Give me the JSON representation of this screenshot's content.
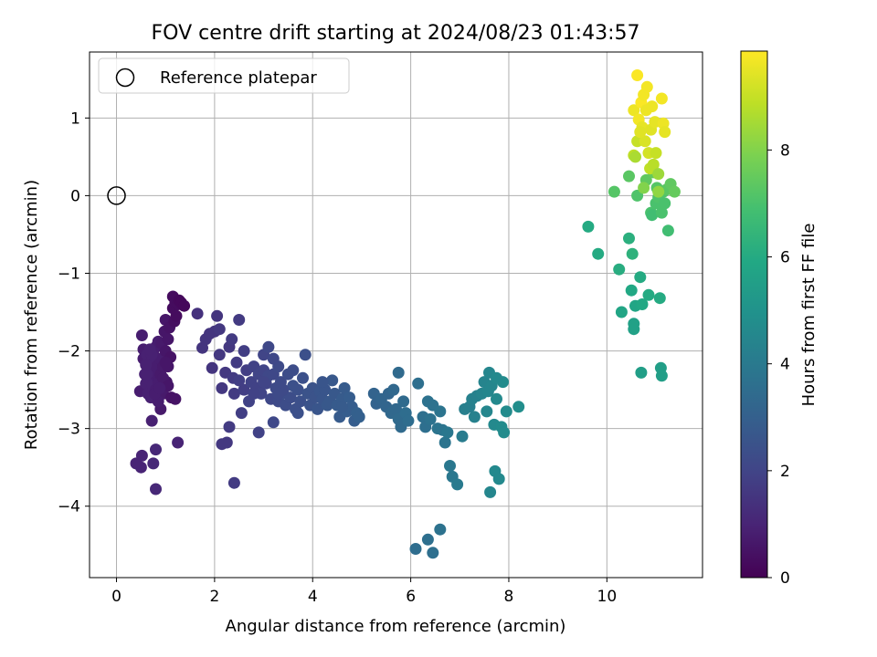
{
  "chart_data": {
    "type": "scatter",
    "title": "FOV centre drift starting at 2024/08/23 01:43:57",
    "xlabel": "Angular distance from reference (arcmin)",
    "ylabel": "Rotation from reference (arcmin)",
    "xlim": [
      -0.55,
      11.95
    ],
    "ylim": [
      -4.92,
      1.85
    ],
    "xticks": [
      0,
      2,
      4,
      6,
      8,
      10
    ],
    "yticks": [
      -4,
      -3,
      -2,
      -1,
      0,
      1
    ],
    "grid": true,
    "legend": {
      "position": "top-left",
      "entries": [
        "Reference platepar"
      ]
    },
    "reference_point": {
      "x": 0,
      "y": 0
    },
    "colorbar": {
      "label": "Hours from first FF file",
      "range": [
        0,
        9.85
      ],
      "ticks": [
        0,
        2,
        4,
        6,
        8
      ],
      "colormap": "viridis"
    },
    "points": [
      [
        0.4,
        -3.45,
        1.0
      ],
      [
        0.5,
        -3.5,
        1.0
      ],
      [
        0.52,
        -3.35,
        1.0
      ],
      [
        0.75,
        -3.45,
        1.1
      ],
      [
        0.8,
        -3.78,
        1.1
      ],
      [
        0.8,
        -3.27,
        1.1
      ],
      [
        0.48,
        -2.52,
        0.8
      ],
      [
        0.52,
        -1.8,
        0.8
      ],
      [
        0.55,
        -1.98,
        0.8
      ],
      [
        0.55,
        -2.1,
        0.8
      ],
      [
        0.58,
        -2.3,
        0.9
      ],
      [
        0.6,
        -2.42,
        0.9
      ],
      [
        0.62,
        -2.05,
        0.9
      ],
      [
        0.64,
        -2.55,
        0.9
      ],
      [
        0.65,
        -2.25,
        0.9
      ],
      [
        0.68,
        -2.38,
        0.9
      ],
      [
        0.7,
        -2.15,
        0.9
      ],
      [
        0.7,
        -2.6,
        0.9
      ],
      [
        0.72,
        -2.9,
        0.9
      ],
      [
        0.74,
        -2.45,
        0.9
      ],
      [
        0.75,
        -2.0,
        0.8
      ],
      [
        0.78,
        -2.3,
        0.8
      ],
      [
        0.8,
        -1.95,
        0.8
      ],
      [
        0.8,
        -2.5,
        0.8
      ],
      [
        0.82,
        -2.2,
        0.8
      ],
      [
        0.85,
        -2.4,
        0.8
      ],
      [
        0.85,
        -1.88,
        0.8
      ],
      [
        0.88,
        -2.1,
        0.8
      ],
      [
        0.9,
        -2.75,
        0.7
      ],
      [
        0.9,
        -2.3,
        0.7
      ],
      [
        0.92,
        -1.9,
        0.7
      ],
      [
        0.95,
        -2.55,
        0.7
      ],
      [
        0.95,
        -2.2,
        0.7
      ],
      [
        0.98,
        -1.75,
        0.6
      ],
      [
        1.0,
        -1.6,
        0.6
      ],
      [
        1.0,
        -2.0,
        0.6
      ],
      [
        1.02,
        -2.4,
        0.6
      ],
      [
        1.05,
        -1.85,
        0.6
      ],
      [
        1.05,
        -2.2,
        0.6
      ],
      [
        1.08,
        -1.7,
        0.5
      ],
      [
        1.1,
        -2.08,
        0.5
      ],
      [
        1.12,
        -2.6,
        0.5
      ],
      [
        1.15,
        -1.3,
        0.3
      ],
      [
        1.15,
        -1.45,
        0.3
      ],
      [
        1.18,
        -1.62,
        0.4
      ],
      [
        1.2,
        -2.62,
        0.5
      ],
      [
        1.2,
        -1.38,
        0.3
      ],
      [
        1.22,
        -1.55,
        0.3
      ],
      [
        1.25,
        -1.4,
        0.3
      ],
      [
        1.28,
        -1.35,
        0.2
      ],
      [
        1.32,
        -1.38,
        0.2
      ],
      [
        1.38,
        -1.42,
        0.2
      ],
      [
        1.25,
        -3.18,
        1.0
      ],
      [
        0.62,
        -2.3,
        0.9
      ],
      [
        0.72,
        -2.05,
        0.9
      ],
      [
        0.85,
        -2.65,
        0.8
      ],
      [
        0.95,
        -2.35,
        0.7
      ],
      [
        1.05,
        -2.45,
        0.6
      ],
      [
        0.78,
        -2.55,
        0.8
      ],
      [
        0.68,
        -1.98,
        0.9
      ],
      [
        0.88,
        -2.48,
        0.8
      ],
      [
        1.0,
        -2.15,
        0.6
      ],
      [
        0.6,
        -2.18,
        0.9
      ],
      [
        1.65,
        -1.52,
        1.4
      ],
      [
        1.75,
        -1.96,
        1.5
      ],
      [
        1.82,
        -1.85,
        1.5
      ],
      [
        1.9,
        -1.78,
        1.5
      ],
      [
        1.95,
        -2.22,
        1.5
      ],
      [
        2.0,
        -1.75,
        1.5
      ],
      [
        2.05,
        -1.55,
        1.5
      ],
      [
        2.1,
        -1.72,
        1.6
      ],
      [
        2.1,
        -2.05,
        1.6
      ],
      [
        2.15,
        -2.48,
        1.6
      ],
      [
        2.15,
        -3.2,
        1.6
      ],
      [
        2.22,
        -2.28,
        1.6
      ],
      [
        2.25,
        -3.18,
        1.6
      ],
      [
        2.3,
        -1.95,
        1.6
      ],
      [
        2.3,
        -2.98,
        1.7
      ],
      [
        2.35,
        -1.85,
        1.7
      ],
      [
        2.38,
        -2.35,
        1.7
      ],
      [
        2.4,
        -3.7,
        1.7
      ],
      [
        2.4,
        -2.55,
        1.7
      ],
      [
        2.45,
        -2.15,
        1.7
      ],
      [
        2.5,
        -1.6,
        1.7
      ],
      [
        2.5,
        -2.38,
        1.8
      ],
      [
        2.55,
        -2.8,
        1.8
      ],
      [
        2.6,
        -2.5,
        1.8
      ],
      [
        2.65,
        -2.25,
        1.8
      ],
      [
        2.7,
        -2.65,
        1.9
      ],
      [
        2.75,
        -2.4,
        1.9
      ],
      [
        2.8,
        -2.2,
        1.9
      ],
      [
        2.85,
        -2.48,
        1.9
      ],
      [
        2.9,
        -3.05,
        1.9
      ],
      [
        2.9,
        -2.3,
        2.0
      ],
      [
        2.95,
        -2.55,
        2.0
      ],
      [
        3.0,
        -2.25,
        2.0
      ],
      [
        3.0,
        -2.05,
        2.0
      ],
      [
        3.05,
        -2.42,
        2.0
      ],
      [
        3.1,
        -2.32,
        2.1
      ],
      [
        3.1,
        -1.95,
        2.1
      ],
      [
        3.15,
        -2.62,
        2.1
      ],
      [
        3.2,
        -2.3,
        2.1
      ],
      [
        3.2,
        -2.92,
        2.1
      ],
      [
        3.25,
        -2.48,
        2.2
      ],
      [
        3.3,
        -2.2,
        2.2
      ],
      [
        3.3,
        -2.65,
        2.2
      ],
      [
        3.35,
        -2.4,
        2.2
      ],
      [
        3.4,
        -2.55,
        2.3
      ],
      [
        3.45,
        -2.7,
        2.3
      ],
      [
        3.5,
        -2.3,
        2.3
      ],
      [
        3.55,
        -2.6,
        2.3
      ],
      [
        3.6,
        -2.45,
        2.4
      ],
      [
        3.65,
        -2.75,
        2.4
      ],
      [
        3.7,
        -2.5,
        2.4
      ],
      [
        3.75,
        -2.65,
        2.4
      ],
      [
        3.8,
        -2.35,
        2.4
      ],
      [
        3.85,
        -2.05,
        2.4
      ],
      [
        3.9,
        -2.55,
        2.5
      ],
      [
        3.95,
        -2.7,
        2.5
      ],
      [
        4.0,
        -2.48,
        2.5
      ],
      [
        4.05,
        -2.6,
        2.5
      ],
      [
        4.1,
        -2.75,
        2.6
      ],
      [
        4.15,
        -2.52,
        2.6
      ],
      [
        4.2,
        -2.62,
        2.6
      ],
      [
        4.25,
        -2.5,
        2.6
      ],
      [
        4.3,
        -2.7,
        2.7
      ],
      [
        4.35,
        -2.65,
        2.7
      ],
      [
        4.4,
        -2.38,
        2.7
      ],
      [
        4.45,
        -2.55,
        2.7
      ],
      [
        4.5,
        -2.7,
        2.8
      ],
      [
        4.55,
        -2.85,
        2.8
      ],
      [
        4.6,
        -2.62,
        2.8
      ],
      [
        4.65,
        -2.48,
        2.8
      ],
      [
        4.7,
        -2.78,
        2.9
      ],
      [
        4.75,
        -2.6,
        2.9
      ],
      [
        4.8,
        -2.72,
        2.9
      ],
      [
        4.85,
        -2.9,
        2.9
      ],
      [
        4.9,
        -2.8,
        3.0
      ],
      [
        4.95,
        -2.85,
        3.0
      ],
      [
        5.25,
        -2.55,
        3.1
      ],
      [
        5.3,
        -2.68,
        3.1
      ],
      [
        5.4,
        -2.62,
        3.2
      ],
      [
        5.5,
        -2.72,
        3.2
      ],
      [
        5.55,
        -2.55,
        3.2
      ],
      [
        5.6,
        -2.8,
        3.3
      ],
      [
        5.65,
        -2.5,
        3.3
      ],
      [
        5.7,
        -2.75,
        3.3
      ],
      [
        5.75,
        -2.88,
        3.4
      ],
      [
        5.75,
        -2.28,
        3.4
      ],
      [
        5.8,
        -2.98,
        3.4
      ],
      [
        5.85,
        -2.65,
        3.4
      ],
      [
        5.9,
        -2.8,
        3.5
      ],
      [
        5.95,
        -2.9,
        3.5
      ],
      [
        3.2,
        -2.1,
        2.1
      ],
      [
        3.6,
        -2.25,
        2.3
      ],
      [
        2.6,
        -2.0,
        1.8
      ],
      [
        3.0,
        -2.4,
        2.0
      ],
      [
        3.4,
        -2.5,
        2.2
      ],
      [
        4.2,
        -2.4,
        2.6
      ],
      [
        3.7,
        -2.8,
        2.4
      ],
      [
        4.6,
        -2.72,
        2.8
      ],
      [
        2.8,
        -2.55,
        1.9
      ],
      [
        3.3,
        -2.55,
        2.2
      ],
      [
        6.15,
        -2.42,
        3.6
      ],
      [
        6.25,
        -2.85,
        3.6
      ],
      [
        6.3,
        -2.98,
        3.6
      ],
      [
        6.35,
        -2.65,
        3.7
      ],
      [
        6.4,
        -2.88,
        3.7
      ],
      [
        6.45,
        -2.7,
        3.7
      ],
      [
        6.55,
        -3.0,
        3.8
      ],
      [
        6.6,
        -2.78,
        3.8
      ],
      [
        6.65,
        -3.02,
        3.8
      ],
      [
        6.7,
        -3.18,
        3.8
      ],
      [
        6.75,
        -3.05,
        3.9
      ],
      [
        6.8,
        -3.48,
        3.9
      ],
      [
        6.85,
        -3.62,
        3.9
      ],
      [
        6.95,
        -3.72,
        4.0
      ],
      [
        6.1,
        -4.55,
        3.5
      ],
      [
        6.35,
        -4.43,
        3.6
      ],
      [
        6.45,
        -4.6,
        3.6
      ],
      [
        6.6,
        -4.3,
        3.7
      ],
      [
        7.05,
        -3.1,
        4.1
      ],
      [
        7.1,
        -2.75,
        4.2
      ],
      [
        7.2,
        -2.72,
        4.2
      ],
      [
        7.25,
        -2.62,
        4.3
      ],
      [
        7.3,
        -2.85,
        4.3
      ],
      [
        7.35,
        -2.58,
        4.3
      ],
      [
        7.45,
        -2.55,
        4.4
      ],
      [
        7.5,
        -2.4,
        4.4
      ],
      [
        7.55,
        -2.78,
        4.5
      ],
      [
        7.6,
        -2.28,
        4.5
      ],
      [
        7.62,
        -3.82,
        4.5
      ],
      [
        7.65,
        -2.45,
        4.5
      ],
      [
        7.7,
        -2.95,
        4.6
      ],
      [
        7.72,
        -3.55,
        4.6
      ],
      [
        7.75,
        -2.62,
        4.6
      ],
      [
        7.8,
        -3.65,
        4.6
      ],
      [
        7.85,
        -2.98,
        4.7
      ],
      [
        7.88,
        -2.4,
        4.7
      ],
      [
        7.9,
        -3.05,
        4.7
      ],
      [
        7.95,
        -2.78,
        4.7
      ],
      [
        8.2,
        -2.72,
        4.8
      ],
      [
        7.75,
        -2.35,
        4.6
      ],
      [
        7.58,
        -2.52,
        4.5
      ],
      [
        9.62,
        -0.4,
        6.0
      ],
      [
        9.82,
        -0.75,
        6.0
      ],
      [
        10.15,
        0.05,
        7.2
      ],
      [
        10.25,
        -0.95,
        6.1
      ],
      [
        10.3,
        -1.5,
        5.8
      ],
      [
        10.45,
        0.25,
        7.3
      ],
      [
        10.45,
        -0.55,
        6.2
      ],
      [
        10.5,
        -1.22,
        5.9
      ],
      [
        10.52,
        -0.75,
        6.3
      ],
      [
        10.55,
        -1.65,
        5.6
      ],
      [
        10.55,
        -1.72,
        5.6
      ],
      [
        10.58,
        -1.42,
        5.8
      ],
      [
        10.62,
        0.0,
        7.1
      ],
      [
        10.68,
        -1.05,
        6.0
      ],
      [
        10.7,
        -2.28,
        5.5
      ],
      [
        10.72,
        -1.4,
        5.9
      ],
      [
        10.8,
        0.2,
        7.4
      ],
      [
        10.85,
        -1.28,
        6.0
      ],
      [
        10.9,
        -0.22,
        7.0
      ],
      [
        10.92,
        -0.25,
        6.8
      ],
      [
        10.95,
        0.3,
        7.5
      ],
      [
        11.0,
        -0.1,
        7.0
      ],
      [
        11.02,
        0.1,
        7.2
      ],
      [
        11.05,
        -0.02,
        7.1
      ],
      [
        11.08,
        -1.32,
        6.0
      ],
      [
        11.1,
        -2.22,
        5.5
      ],
      [
        11.12,
        -2.32,
        5.5
      ],
      [
        11.12,
        -0.22,
        7.0
      ],
      [
        11.15,
        0.05,
        7.1
      ],
      [
        11.18,
        -0.1,
        7.0
      ],
      [
        11.22,
        0.08,
        7.3
      ],
      [
        11.25,
        -0.45,
        6.8
      ],
      [
        11.3,
        0.15,
        7.4
      ],
      [
        11.38,
        0.05,
        7.5
      ],
      [
        10.55,
        1.1,
        9.6
      ],
      [
        10.55,
        0.52,
        8.9
      ],
      [
        10.62,
        0.7,
        9.0
      ],
      [
        10.62,
        1.55,
        9.8
      ],
      [
        10.65,
        0.98,
        9.7
      ],
      [
        10.7,
        1.2,
        9.8
      ],
      [
        10.72,
        0.88,
        9.5
      ],
      [
        10.75,
        1.3,
        9.7
      ],
      [
        10.78,
        0.7,
        9.3
      ],
      [
        10.8,
        1.1,
        9.6
      ],
      [
        10.82,
        1.4,
        9.7
      ],
      [
        10.85,
        0.55,
        9.2
      ],
      [
        10.88,
        0.35,
        8.9
      ],
      [
        10.9,
        0.85,
        9.4
      ],
      [
        10.95,
        0.4,
        8.8
      ],
      [
        10.98,
        0.95,
        9.5
      ],
      [
        11.0,
        0.55,
        9.0
      ],
      [
        11.05,
        0.28,
        8.4
      ],
      [
        11.12,
        1.25,
        9.7
      ],
      [
        11.15,
        0.93,
        9.6
      ],
      [
        11.18,
        0.82,
        9.5
      ],
      [
        10.68,
        0.82,
        9.4
      ],
      [
        10.92,
        1.15,
        9.6
      ],
      [
        10.58,
        0.5,
        8.6
      ],
      [
        10.75,
        0.1,
        8.0
      ],
      [
        11.05,
        0.05,
        8.2
      ]
    ]
  }
}
